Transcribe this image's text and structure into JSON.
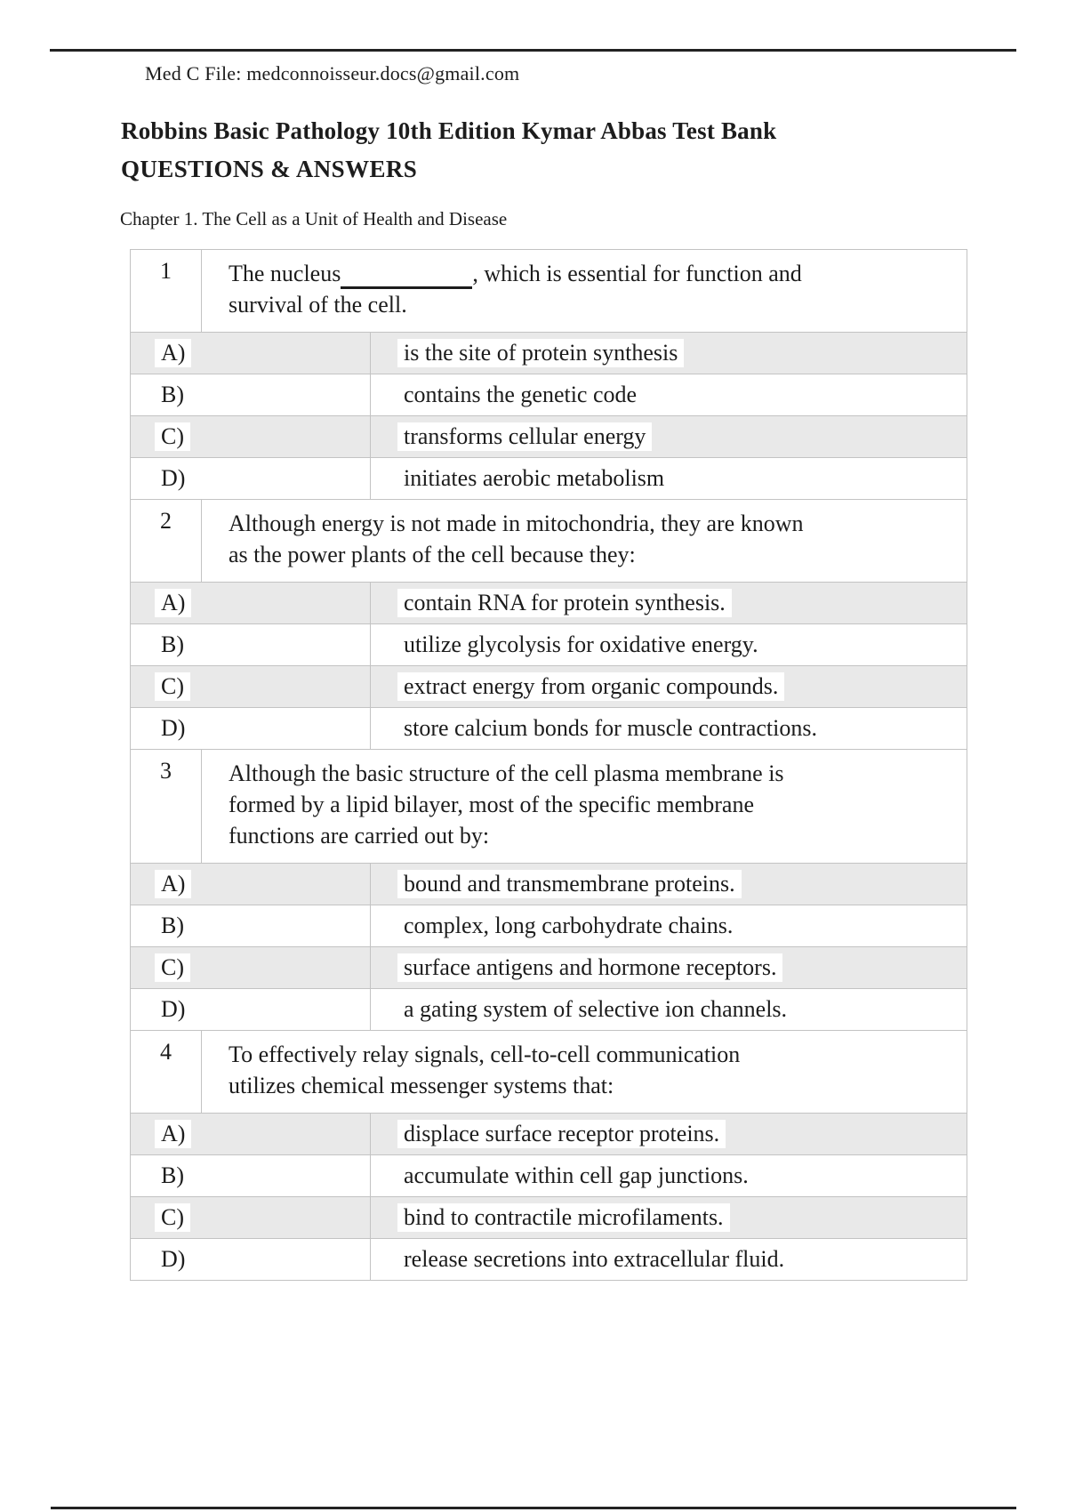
{
  "page": {
    "header_note": "Med C File: medconnoisseur.docs@gmail.com",
    "title": "Robbins Basic Pathology 10th Edition Kymar Abbas Test Bank",
    "subtitle": "QUESTIONS & ANSWERS",
    "chapter_heading": "Chapter 1. The Cell as a Unit of Health and Disease"
  },
  "colors": {
    "shaded_row": "#e9e9e9",
    "border": "#c3c3c3",
    "text": "#1c1c1c",
    "rule": "#222222",
    "highlight": "#ffffff"
  },
  "questions": [
    {
      "number": "1",
      "has_blank": true,
      "text_before": "The nucleus",
      "text_after": ", which is essential for function and\nsurvival of the cell.",
      "options": [
        {
          "letter": "A)",
          "text": "is the site of protein synthesis"
        },
        {
          "letter": "B)",
          "text": "contains the genetic code"
        },
        {
          "letter": "C)",
          "text": "transforms cellular energy"
        },
        {
          "letter": "D)",
          "text": "initiates aerobic metabolism"
        }
      ]
    },
    {
      "number": "2",
      "has_blank": false,
      "text_before": "Although energy is not made in mitochondria, they are known\nas the power plants of the cell because they:",
      "text_after": "",
      "options": [
        {
          "letter": "A)",
          "text": "contain RNA for protein synthesis."
        },
        {
          "letter": "B)",
          "text": "utilize glycolysis for oxidative energy."
        },
        {
          "letter": "C)",
          "text": "extract energy from organic compounds."
        },
        {
          "letter": "D)",
          "text": "store calcium bonds for muscle contractions."
        }
      ]
    },
    {
      "number": "3",
      "has_blank": false,
      "text_before": "Although the basic structure of the cell plasma membrane is\nformed by a lipid bilayer, most of the specific membrane\nfunctions are carried out by:",
      "text_after": "",
      "options": [
        {
          "letter": "A)",
          "text": "bound and transmembrane proteins."
        },
        {
          "letter": "B)",
          "text": "complex, long carbohydrate chains."
        },
        {
          "letter": "C)",
          "text": "surface antigens and hormone receptors."
        },
        {
          "letter": "D)",
          "text": "a gating system of selective ion channels."
        }
      ]
    },
    {
      "number": "4",
      "has_blank": false,
      "text_before": "To effectively relay signals, cell-to-cell communication\nutilizes chemical messenger systems that:",
      "text_after": "",
      "options": [
        {
          "letter": "A)",
          "text": "displace surface receptor proteins."
        },
        {
          "letter": "B)",
          "text": "accumulate within cell gap junctions."
        },
        {
          "letter": "C)",
          "text": "bind to contractile microfilaments."
        },
        {
          "letter": "D)",
          "text": "release secretions into extracellular fluid."
        }
      ]
    }
  ]
}
